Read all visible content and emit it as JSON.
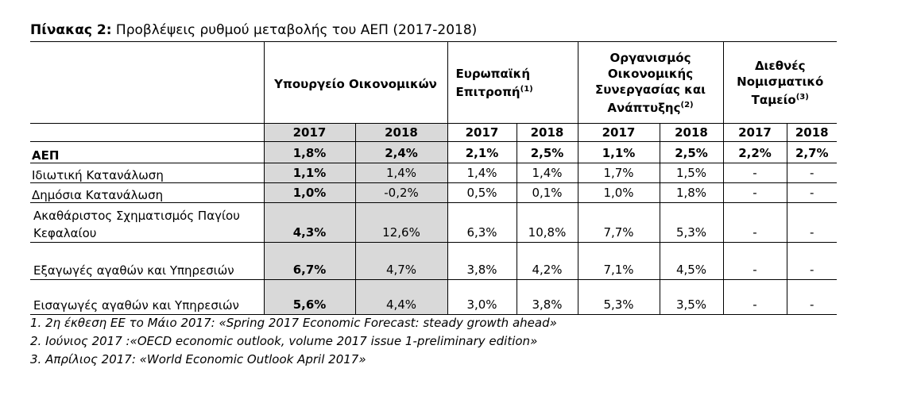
{
  "title": {
    "prefix": "Πίνακας 2:",
    "text": "Προβλέψεις ρυθμού μεταβολής του ΑΕΠ (2017-2018)"
  },
  "groups": [
    {
      "name": "Υπουργείο Οικονομικών",
      "sup": ""
    },
    {
      "name": "Ευρωπαϊκή Επιτροπή",
      "sup": "(1)"
    },
    {
      "name": "Οργανισμός Οικονομικής Συνεργασίας και Ανάπτυξης",
      "sup": "(2)"
    },
    {
      "name": "Διεθνές Νομισματικό Ταμείο",
      "sup": "(3)"
    }
  ],
  "years": [
    "2017",
    "2018",
    "2017",
    "2018",
    "2017",
    "2018",
    "2017",
    "2018"
  ],
  "rows": [
    {
      "label": "ΑΕΠ",
      "values": [
        "1,8%",
        "2,4%",
        "2,1%",
        "2,5%",
        "1,1%",
        "2,5%",
        "2,2%",
        "2,7%"
      ]
    },
    {
      "label": "Ιδιωτική Κατανάλωση",
      "values": [
        "1,1%",
        "1,4%",
        "1,4%",
        "1,4%",
        "1,7%",
        "1,5%",
        "-",
        "-"
      ]
    },
    {
      "label": "Δημόσια Κατανάλωση",
      "values": [
        "1,0%",
        "-0,2%",
        "0,5%",
        "0,1%",
        "1,0%",
        "1,8%",
        "-",
        "-"
      ]
    },
    {
      "label": "Ακαθάριστος Σχηματισμός Παγίου Κεφαλαίου",
      "values": [
        "4,3%",
        "12,6%",
        "6,3%",
        "10,8%",
        "7,7%",
        "5,3%",
        "-",
        "-"
      ]
    },
    {
      "label": "Εξαγωγές αγαθών και Υπηρεσιών",
      "values": [
        "6,7%",
        "4,7%",
        "3,8%",
        "4,2%",
        "7,1%",
        "4,5%",
        "-",
        "-"
      ]
    },
    {
      "label": "Εισαγωγές αγαθών και Υπηρεσιών",
      "values": [
        "5,6%",
        "4,4%",
        "3,0%",
        "3,8%",
        "5,3%",
        "3,5%",
        "-",
        "-"
      ]
    }
  ],
  "footnotes": [
    "1. 2η έκθεση ΕΕ το Μάιο 2017: «Spring 2017 Economic Forecast: steady growth ahead»",
    "2. Ιούνιος 2017 :«OECD economic outlook, volume 2017 issue 1-preliminary edition»",
    "3.  Απρίλιος 2017: «World Economic Outlook  April 2017»"
  ]
}
